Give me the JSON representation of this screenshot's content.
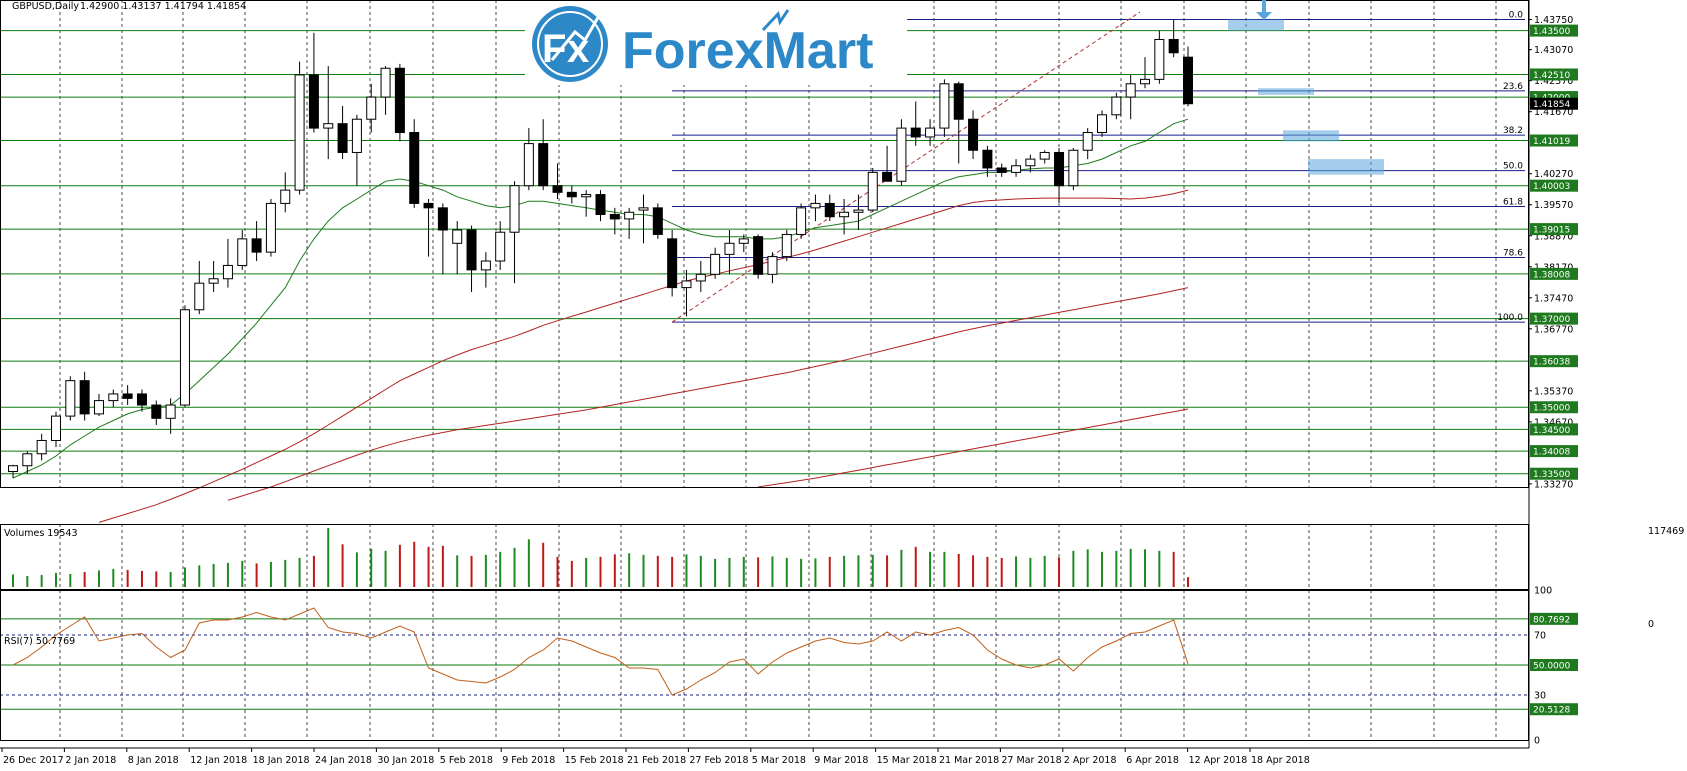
{
  "header": {
    "symbol": "GBPUSD,Daily",
    "ohlc": "1.42900 1.43137 1.41794 1.41854"
  },
  "logo": {
    "text": "ForexMart"
  },
  "volume_panel": {
    "label": "Volumes 19543",
    "max_label": "117469",
    "zero_label": "0"
  },
  "rsi_panel": {
    "label": "RSI(7) 50.7769"
  },
  "chart_data": [
    {
      "type": "candlestick",
      "name": "price",
      "ylim": [
        1.332,
        1.4392
      ],
      "y_ticks": [
        "1.43750",
        "1.43070",
        "1.42370",
        "1.41670",
        "1.40270",
        "1.39570",
        "1.38870",
        "1.38170",
        "1.37470",
        "1.36770",
        "1.35370",
        "1.34670",
        "1.33270"
      ],
      "level_tags": [
        {
          "v": 1.435,
          "label": "1.43500"
        },
        {
          "v": 1.4251,
          "label": "1.42510"
        },
        {
          "v": 1.42,
          "label": "1.42000"
        },
        {
          "v": 1.4185,
          "label": "1.41854"
        },
        {
          "v": 1.4102,
          "label": "1.41019"
        },
        {
          "v": 1.4,
          "label": "1.40003"
        },
        {
          "v": 1.3902,
          "label": "1.39015"
        },
        {
          "v": 1.3801,
          "label": "1.38008"
        },
        {
          "v": 1.37,
          "label": "1.37000"
        },
        {
          "v": 1.3604,
          "label": "1.36038"
        },
        {
          "v": 1.35,
          "label": "1.35000"
        },
        {
          "v": 1.345,
          "label": "1.34500"
        },
        {
          "v": 1.3401,
          "label": "1.34008"
        },
        {
          "v": 1.335,
          "label": "1.33500"
        }
      ],
      "fibonacci": [
        {
          "level": "0.0",
          "v": 1.4375
        },
        {
          "level": "23.6",
          "v": 1.4214
        },
        {
          "level": "38.2",
          "v": 1.4114
        },
        {
          "level": "50.0",
          "v": 1.4034
        },
        {
          "level": "61.8",
          "v": 1.3953
        },
        {
          "level": "78.6",
          "v": 1.3838
        },
        {
          "level": "100.0",
          "v": 1.3692
        }
      ],
      "x_labels": [
        "26 Dec 2017",
        "2 Jan 2018",
        "8 Jan 2018",
        "12 Jan 2018",
        "18 Jan 2018",
        "24 Jan 2018",
        "30 Jan 2018",
        "5 Feb 2018",
        "9 Feb 2018",
        "15 Feb 2018",
        "21 Feb 2018",
        "27 Feb 2018",
        "5 Mar 2018",
        "9 Mar 2018",
        "15 Mar 2018",
        "21 Mar 2018",
        "27 Mar 2018",
        "2 Apr 2018",
        "6 Apr 2018",
        "12 Apr 2018",
        "18 Apr 2018"
      ],
      "candles": [
        {
          "o": 1.3355,
          "h": 1.337,
          "l": 1.334,
          "c": 1.3368
        },
        {
          "o": 1.3368,
          "h": 1.34,
          "l": 1.335,
          "c": 1.3395
        },
        {
          "o": 1.3395,
          "h": 1.344,
          "l": 1.338,
          "c": 1.3425
        },
        {
          "o": 1.3425,
          "h": 1.349,
          "l": 1.341,
          "c": 1.348
        },
        {
          "o": 1.348,
          "h": 1.357,
          "l": 1.347,
          "c": 1.356
        },
        {
          "o": 1.356,
          "h": 1.358,
          "l": 1.347,
          "c": 1.3485
        },
        {
          "o": 1.3485,
          "h": 1.353,
          "l": 1.348,
          "c": 1.3515
        },
        {
          "o": 1.3515,
          "h": 1.354,
          "l": 1.35,
          "c": 1.353
        },
        {
          "o": 1.353,
          "h": 1.355,
          "l": 1.3505,
          "c": 1.352
        },
        {
          "o": 1.353,
          "h": 1.354,
          "l": 1.349,
          "c": 1.3505
        },
        {
          "o": 1.3505,
          "h": 1.3515,
          "l": 1.346,
          "c": 1.3475
        },
        {
          "o": 1.3475,
          "h": 1.352,
          "l": 1.344,
          "c": 1.3505
        },
        {
          "o": 1.3505,
          "h": 1.373,
          "l": 1.35,
          "c": 1.372
        },
        {
          "o": 1.372,
          "h": 1.383,
          "l": 1.371,
          "c": 1.378
        },
        {
          "o": 1.378,
          "h": 1.383,
          "l": 1.376,
          "c": 1.379
        },
        {
          "o": 1.379,
          "h": 1.388,
          "l": 1.377,
          "c": 1.382
        },
        {
          "o": 1.382,
          "h": 1.39,
          "l": 1.381,
          "c": 1.388
        },
        {
          "o": 1.388,
          "h": 1.392,
          "l": 1.383,
          "c": 1.385
        },
        {
          "o": 1.385,
          "h": 1.397,
          "l": 1.384,
          "c": 1.396
        },
        {
          "o": 1.396,
          "h": 1.403,
          "l": 1.394,
          "c": 1.399
        },
        {
          "o": 1.399,
          "h": 1.428,
          "l": 1.398,
          "c": 1.425
        },
        {
          "o": 1.425,
          "h": 1.4345,
          "l": 1.412,
          "c": 1.413
        },
        {
          "o": 1.413,
          "h": 1.427,
          "l": 1.406,
          "c": 1.414
        },
        {
          "o": 1.414,
          "h": 1.418,
          "l": 1.406,
          "c": 1.4075
        },
        {
          "o": 1.4075,
          "h": 1.416,
          "l": 1.4,
          "c": 1.415
        },
        {
          "o": 1.415,
          "h": 1.423,
          "l": 1.412,
          "c": 1.42
        },
        {
          "o": 1.42,
          "h": 1.427,
          "l": 1.416,
          "c": 1.4265
        },
        {
          "o": 1.4265,
          "h": 1.4275,
          "l": 1.41,
          "c": 1.412
        },
        {
          "o": 1.412,
          "h": 1.415,
          "l": 1.395,
          "c": 1.396
        },
        {
          "o": 1.396,
          "h": 1.397,
          "l": 1.384,
          "c": 1.395
        },
        {
          "o": 1.395,
          "h": 1.396,
          "l": 1.38,
          "c": 1.39
        },
        {
          "o": 1.387,
          "h": 1.392,
          "l": 1.38,
          "c": 1.39
        },
        {
          "o": 1.39,
          "h": 1.391,
          "l": 1.376,
          "c": 1.381
        },
        {
          "o": 1.381,
          "h": 1.385,
          "l": 1.377,
          "c": 1.383
        },
        {
          "o": 1.383,
          "h": 1.392,
          "l": 1.381,
          "c": 1.3895
        },
        {
          "o": 1.3895,
          "h": 1.401,
          "l": 1.378,
          "c": 1.4
        },
        {
          "o": 1.4,
          "h": 1.413,
          "l": 1.399,
          "c": 1.4095
        },
        {
          "o": 1.4095,
          "h": 1.415,
          "l": 1.399,
          "c": 1.4
        },
        {
          "o": 1.4,
          "h": 1.405,
          "l": 1.397,
          "c": 1.3985
        },
        {
          "o": 1.3985,
          "h": 1.4,
          "l": 1.396,
          "c": 1.3975
        },
        {
          "o": 1.3975,
          "h": 1.399,
          "l": 1.393,
          "c": 1.398
        },
        {
          "o": 1.398,
          "h": 1.399,
          "l": 1.392,
          "c": 1.3935
        },
        {
          "o": 1.3935,
          "h": 1.395,
          "l": 1.389,
          "c": 1.3925
        },
        {
          "o": 1.3925,
          "h": 1.395,
          "l": 1.388,
          "c": 1.394
        },
        {
          "o": 1.3945,
          "h": 1.398,
          "l": 1.387,
          "c": 1.395
        },
        {
          "o": 1.395,
          "h": 1.396,
          "l": 1.388,
          "c": 1.389
        },
        {
          "o": 1.388,
          "h": 1.39,
          "l": 1.375,
          "c": 1.377
        },
        {
          "o": 1.377,
          "h": 1.381,
          "l": 1.3705,
          "c": 1.3785
        },
        {
          "o": 1.3785,
          "h": 1.383,
          "l": 1.376,
          "c": 1.38
        },
        {
          "o": 1.38,
          "h": 1.386,
          "l": 1.379,
          "c": 1.3845
        },
        {
          "o": 1.3845,
          "h": 1.39,
          "l": 1.38,
          "c": 1.387
        },
        {
          "o": 1.387,
          "h": 1.389,
          "l": 1.385,
          "c": 1.388
        },
        {
          "o": 1.3885,
          "h": 1.389,
          "l": 1.379,
          "c": 1.38
        },
        {
          "o": 1.38,
          "h": 1.385,
          "l": 1.378,
          "c": 1.384
        },
        {
          "o": 1.384,
          "h": 1.39,
          "l": 1.383,
          "c": 1.389
        },
        {
          "o": 1.389,
          "h": 1.396,
          "l": 1.388,
          "c": 1.395
        },
        {
          "o": 1.395,
          "h": 1.398,
          "l": 1.392,
          "c": 1.396
        },
        {
          "o": 1.396,
          "h": 1.398,
          "l": 1.392,
          "c": 1.393
        },
        {
          "o": 1.393,
          "h": 1.397,
          "l": 1.389,
          "c": 1.394
        },
        {
          "o": 1.394,
          "h": 1.398,
          "l": 1.39,
          "c": 1.3945
        },
        {
          "o": 1.3945,
          "h": 1.404,
          "l": 1.394,
          "c": 1.403
        },
        {
          "o": 1.403,
          "h": 1.409,
          "l": 1.401,
          "c": 1.401
        },
        {
          "o": 1.401,
          "h": 1.415,
          "l": 1.4,
          "c": 1.413
        },
        {
          "o": 1.413,
          "h": 1.419,
          "l": 1.409,
          "c": 1.411
        },
        {
          "o": 1.411,
          "h": 1.415,
          "l": 1.409,
          "c": 1.413
        },
        {
          "o": 1.413,
          "h": 1.424,
          "l": 1.411,
          "c": 1.423
        },
        {
          "o": 1.423,
          "h": 1.4235,
          "l": 1.405,
          "c": 1.415
        },
        {
          "o": 1.415,
          "h": 1.417,
          "l": 1.406,
          "c": 1.408
        },
        {
          "o": 1.408,
          "h": 1.409,
          "l": 1.402,
          "c": 1.404
        },
        {
          "o": 1.404,
          "h": 1.405,
          "l": 1.402,
          "c": 1.403
        },
        {
          "o": 1.403,
          "h": 1.406,
          "l": 1.402,
          "c": 1.4045
        },
        {
          "o": 1.4045,
          "h": 1.407,
          "l": 1.403,
          "c": 1.406
        },
        {
          "o": 1.406,
          "h": 1.408,
          "l": 1.405,
          "c": 1.4075
        },
        {
          "o": 1.4075,
          "h": 1.4085,
          "l": 1.396,
          "c": 1.4
        },
        {
          "o": 1.4,
          "h": 1.4085,
          "l": 1.399,
          "c": 1.408
        },
        {
          "o": 1.408,
          "h": 1.413,
          "l": 1.406,
          "c": 1.412
        },
        {
          "o": 1.412,
          "h": 1.417,
          "l": 1.411,
          "c": 1.416
        },
        {
          "o": 1.416,
          "h": 1.421,
          "l": 1.415,
          "c": 1.42
        },
        {
          "o": 1.42,
          "h": 1.425,
          "l": 1.415,
          "c": 1.423
        },
        {
          "o": 1.423,
          "h": 1.429,
          "l": 1.422,
          "c": 1.424
        },
        {
          "o": 1.424,
          "h": 1.435,
          "l": 1.423,
          "c": 1.433
        },
        {
          "o": 1.433,
          "h": 1.4376,
          "l": 1.429,
          "c": 1.43
        },
        {
          "o": 1.429,
          "h": 1.4314,
          "l": 1.4179,
          "c": 1.4185
        }
      ],
      "ma_fast": [
        1.334,
        1.3355,
        1.337,
        1.339,
        1.3415,
        1.3435,
        1.3455,
        1.347,
        1.3485,
        1.3495,
        1.35,
        1.3505,
        1.353,
        1.356,
        1.359,
        1.362,
        1.3655,
        1.369,
        1.373,
        1.377,
        1.383,
        1.388,
        1.392,
        1.395,
        1.397,
        1.399,
        1.401,
        1.4015,
        1.401,
        1.4,
        1.399,
        1.3975,
        1.3965,
        1.3955,
        1.395,
        1.3955,
        1.3965,
        1.3965,
        1.396,
        1.3955,
        1.395,
        1.3945,
        1.394,
        1.3935,
        1.3935,
        1.393,
        1.3915,
        1.39,
        1.389,
        1.3885,
        1.3885,
        1.3885,
        1.388,
        1.388,
        1.3885,
        1.3895,
        1.3905,
        1.391,
        1.3915,
        1.392,
        1.3935,
        1.395,
        1.3965,
        1.398,
        1.3995,
        1.401,
        1.402,
        1.4025,
        1.403,
        1.403,
        1.4035,
        1.4038,
        1.404,
        1.404,
        1.4045,
        1.405,
        1.406,
        1.4075,
        1.409,
        1.41,
        1.412,
        1.414,
        1.415
      ],
      "ma_mid": [
        null,
        null,
        null,
        null,
        null,
        null,
        1.324,
        1.325,
        1.326,
        1.327,
        1.328,
        1.3292,
        1.3305,
        1.3318,
        1.3332,
        1.3346,
        1.336,
        1.3375,
        1.339,
        1.3405,
        1.3422,
        1.344,
        1.346,
        1.348,
        1.35,
        1.352,
        1.354,
        1.356,
        1.3575,
        1.359,
        1.3605,
        1.3618,
        1.363,
        1.364,
        1.365,
        1.366,
        1.3672,
        1.3685,
        1.3695,
        1.3705,
        1.3715,
        1.3725,
        1.3735,
        1.3745,
        1.3755,
        1.3765,
        1.3775,
        1.3785,
        1.3793,
        1.38,
        1.3808,
        1.3815,
        1.3822,
        1.383,
        1.3838,
        1.3846,
        1.3855,
        1.3865,
        1.3875,
        1.3885,
        1.3895,
        1.3905,
        1.3915,
        1.3925,
        1.3935,
        1.3945,
        1.3955,
        1.3962,
        1.3966,
        1.3968,
        1.397,
        1.3971,
        1.3972,
        1.3972,
        1.3972,
        1.3972,
        1.3972,
        1.3971,
        1.397,
        1.3972,
        1.3976,
        1.3982,
        1.399
      ],
      "ma_slow": [
        null,
        null,
        null,
        null,
        null,
        null,
        null,
        null,
        null,
        null,
        null,
        null,
        null,
        null,
        null,
        1.329,
        1.33,
        1.331,
        1.332,
        1.3332,
        1.3344,
        1.3356,
        1.3368,
        1.338,
        1.3392,
        1.3403,
        1.3413,
        1.3422,
        1.343,
        1.3437,
        1.3443,
        1.3449,
        1.3454,
        1.3459,
        1.3464,
        1.3469,
        1.3474,
        1.3479,
        1.3484,
        1.3489,
        1.3494,
        1.35,
        1.3506,
        1.3512,
        1.3518,
        1.3524,
        1.353,
        1.3536,
        1.3542,
        1.3548,
        1.3554,
        1.356,
        1.3566,
        1.3572,
        1.3578,
        1.3585,
        1.3592,
        1.3599,
        1.3606,
        1.3614,
        1.3622,
        1.363,
        1.3638,
        1.3646,
        1.3654,
        1.3662,
        1.367,
        1.3677,
        1.3684,
        1.369,
        1.3696,
        1.3702,
        1.3708,
        1.3714,
        1.372,
        1.3726,
        1.3732,
        1.3738,
        1.3744,
        1.375,
        1.3756,
        1.3763,
        1.377
      ],
      "ma_slowest": [
        null,
        null,
        null,
        null,
        null,
        null,
        null,
        null,
        null,
        null,
        null,
        null,
        null,
        null,
        null,
        null,
        null,
        null,
        null,
        null,
        null,
        null,
        null,
        null,
        null,
        null,
        null,
        null,
        null,
        null,
        null,
        null,
        null,
        null,
        null,
        null,
        null,
        null,
        null,
        null,
        null,
        null,
        null,
        null,
        null,
        null,
        null,
        null,
        null,
        null,
        null,
        null,
        1.332,
        1.3325,
        1.333,
        1.3335,
        1.334,
        1.3346,
        1.3352,
        1.3358,
        1.3364,
        1.337,
        1.3376,
        1.3382,
        1.3388,
        1.3394,
        1.34,
        1.3406,
        1.3412,
        1.3418,
        1.3424,
        1.343,
        1.3436,
        1.3442,
        1.3448,
        1.3454,
        1.346,
        1.3466,
        1.3472,
        1.3478,
        1.3484,
        1.349,
        1.3496
      ]
    },
    {
      "type": "bar",
      "name": "volumes",
      "ylim": [
        0,
        117469
      ],
      "values": [
        25000,
        22000,
        24000,
        28000,
        26000,
        30000,
        33000,
        36000,
        34000,
        32000,
        31000,
        30000,
        39000,
        43000,
        46000,
        48000,
        52000,
        47000,
        50000,
        54000,
        58000,
        62000,
        117469,
        85000,
        69000,
        76000,
        72000,
        84000,
        90000,
        80000,
        82000,
        63000,
        62000,
        64000,
        70000,
        78000,
        95000,
        88000,
        60000,
        52000,
        58000,
        60000,
        65000,
        67000,
        64000,
        62000,
        60000,
        65000,
        62000,
        56000,
        58000,
        60000,
        59000,
        61000,
        58000,
        56000,
        57000,
        60000,
        62000,
        63000,
        64000,
        63000,
        74000,
        80000,
        70000,
        70000,
        66000,
        63000,
        60000,
        58000,
        61000,
        58000,
        62000,
        59000,
        72000,
        75000,
        70000,
        72000,
        76000,
        75000,
        72000,
        70000,
        19543
      ]
    },
    {
      "type": "line",
      "name": "RSI(7)",
      "ylim": [
        0,
        100
      ],
      "y_ticks": [
        "100",
        "70",
        "30",
        "0"
      ],
      "level_tags": [
        {
          "v": 80.7692,
          "label": "80.7692"
        },
        {
          "v": 50.0,
          "label": "50.0000"
        },
        {
          "v": 20.5128,
          "label": "20.5128"
        }
      ],
      "values": [
        50,
        55,
        62,
        70,
        76,
        82,
        66,
        68,
        70,
        71,
        62,
        55,
        60,
        78,
        80,
        80,
        82,
        85,
        82,
        80,
        84,
        88,
        75,
        72,
        71,
        68,
        72,
        76,
        72,
        48,
        44,
        40,
        39,
        38,
        42,
        47,
        55,
        60,
        68,
        66,
        62,
        58,
        55,
        48,
        48,
        47,
        30,
        34,
        40,
        45,
        52,
        54,
        44,
        52,
        58,
        62,
        66,
        68,
        65,
        64,
        66,
        72,
        66,
        72,
        70,
        73,
        75,
        70,
        60,
        54,
        50,
        48,
        50,
        54,
        46,
        55,
        62,
        66,
        71,
        72,
        76,
        80,
        50.77
      ]
    }
  ]
}
